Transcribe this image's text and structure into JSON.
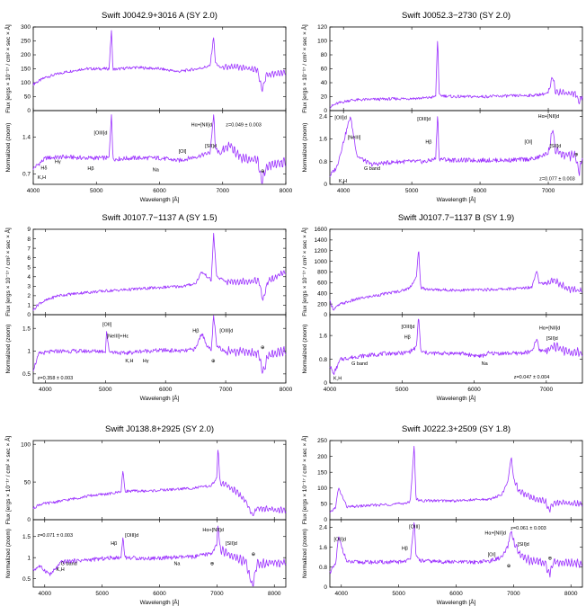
{
  "figure": {
    "xlabel": "Wavelength [Å]",
    "ylabel_flux": "Flux [ergs × 10⁻¹⁷ / cm² × sec × Å]",
    "ylabel_norm": "Normalized (zoom)",
    "line_color": "#9b30ff"
  },
  "chart_data": [
    {
      "type": "line",
      "title": "Swift J0042.9+3016 A (SY 2.0)",
      "xlim": [
        4000,
        8000
      ],
      "xticks": [
        4000,
        5000,
        6000,
        7000,
        8000
      ],
      "flux": {
        "ylim": [
          0,
          300
        ],
        "yticks": [
          0,
          50,
          100,
          150,
          200,
          250,
          300
        ],
        "x": [
          4000,
          4200,
          4500,
          4800,
          5000,
          5200,
          5240,
          5260,
          5300,
          5600,
          6000,
          6300,
          6600,
          6800,
          6860,
          6880,
          6950,
          7300,
          7550,
          7620,
          7700,
          8000
        ],
        "y": [
          95,
          120,
          138,
          150,
          150,
          150,
          295,
          150,
          148,
          155,
          150,
          140,
          150,
          160,
          270,
          175,
          155,
          155,
          145,
          75,
          130,
          135
        ]
      },
      "norm": {
        "ylim": [
          0.5,
          1.9
        ],
        "yticks": [
          0.7,
          1.4
        ],
        "x": [
          4000,
          4200,
          4500,
          4800,
          5000,
          5200,
          5240,
          5260,
          5300,
          5600,
          6000,
          6300,
          6600,
          6800,
          6860,
          6880,
          6950,
          7100,
          7300,
          7550,
          7620,
          7700,
          8000
        ],
        "y": [
          0.8,
          1.0,
          1.02,
          1.0,
          1.0,
          1.0,
          1.9,
          1.0,
          0.98,
          1.0,
          1.0,
          0.95,
          1.03,
          1.1,
          1.85,
          1.2,
          1.08,
          1.25,
          1.0,
          0.95,
          0.55,
          0.85,
          0.92
        ]
      },
      "annotations": [
        {
          "text": "K,H",
          "x": 4070,
          "y": 0.6
        },
        {
          "text": "Hδ",
          "x": 4120,
          "y": 0.78
        },
        {
          "text": "Hγ",
          "x": 4340,
          "y": 0.9
        },
        {
          "text": "Hβ",
          "x": 4860,
          "y": 0.77
        },
        {
          "text": "[OIII]d",
          "x": 4960,
          "y": 1.45
        },
        {
          "text": "Na",
          "x": 5890,
          "y": 0.75
        },
        {
          "text": "[OI]",
          "x": 6300,
          "y": 1.1
        },
        {
          "text": "Hα+[NII]d",
          "x": 6500,
          "y": 1.6
        },
        {
          "text": "[SII]d",
          "x": 6720,
          "y": 1.2
        },
        {
          "text": "z=0.049 ± 0.003",
          "x": 7050,
          "y": 1.6
        },
        {
          "text": "⊕",
          "x": 7600,
          "y": 0.72
        }
      ]
    },
    {
      "type": "line",
      "title": "Swift J0052.3−2730 (SY 2.0)",
      "xlim": [
        3800,
        7500
      ],
      "xticks": [
        4000,
        5000,
        6000,
        7000
      ],
      "flux": {
        "ylim": [
          0,
          120
        ],
        "yticks": [
          0,
          20,
          40,
          60,
          80,
          100,
          120
        ],
        "x": [
          3800,
          3900,
          4100,
          4400,
          4800,
          5200,
          5350,
          5380,
          5400,
          5600,
          6000,
          6400,
          6800,
          7000,
          7070,
          7100,
          7200,
          7400,
          7450,
          7500
        ],
        "y": [
          5,
          10,
          15,
          16,
          17,
          18,
          20,
          110,
          22,
          20,
          20,
          21,
          22,
          25,
          50,
          28,
          26,
          24,
          12,
          22
        ]
      },
      "norm": {
        "ylim": [
          0,
          2.6
        ],
        "yticks": [
          0,
          0.8,
          1.6,
          2.4
        ],
        "x": [
          3800,
          3900,
          4100,
          4200,
          4400,
          4800,
          5200,
          5350,
          5380,
          5400,
          5600,
          6000,
          6400,
          6800,
          7000,
          7070,
          7100,
          7200,
          7400,
          7450,
          7500
        ],
        "y": [
          0.3,
          0.6,
          2.4,
          1.0,
          0.7,
          0.8,
          0.8,
          0.9,
          2.6,
          0.9,
          0.85,
          0.85,
          0.85,
          0.9,
          1.1,
          2.0,
          1.2,
          1.05,
          1.0,
          0.4,
          0.95
        ]
      },
      "annotations": [
        {
          "text": "[OII]d",
          "x": 3870,
          "y": 2.3
        },
        {
          "text": "[NeIII]",
          "x": 4060,
          "y": 1.6
        },
        {
          "text": "K,H",
          "x": 3930,
          "y": 0.05
        },
        {
          "text": "G band",
          "x": 4300,
          "y": 0.5
        },
        {
          "text": "Hβ",
          "x": 5200,
          "y": 1.45
        },
        {
          "text": "[OIII]d",
          "x": 5080,
          "y": 2.25
        },
        {
          "text": "[OI]",
          "x": 6650,
          "y": 1.45
        },
        {
          "text": "Hα+[NII]d",
          "x": 6850,
          "y": 2.35
        },
        {
          "text": "[SII]d",
          "x": 7020,
          "y": 1.3
        },
        {
          "text": "z=0.077 ± 0.003",
          "x": 6870,
          "y": 0.15
        },
        {
          "text": "⊕",
          "x": 7380,
          "y": 1.0
        }
      ]
    },
    {
      "type": "line",
      "title": "Swift J0107.7−1137 A (SY 1.5)",
      "xlim": [
        3800,
        8000
      ],
      "xticks": [
        4000,
        5000,
        6000,
        7000,
        8000
      ],
      "flux": {
        "ylim": [
          0,
          9
        ],
        "yticks": [
          0,
          1,
          2,
          3,
          4,
          5,
          6,
          7,
          8,
          9
        ],
        "x": [
          3800,
          3900,
          4200,
          4600,
          5000,
          5500,
          6000,
          6300,
          6500,
          6600,
          6700,
          6760,
          6800,
          6850,
          7000,
          7300,
          7550,
          7620,
          7700,
          8000
        ],
        "y": [
          0.5,
          1.2,
          2.0,
          2.3,
          2.5,
          2.7,
          2.9,
          3.0,
          3.3,
          4.5,
          4.0,
          3.6,
          8.5,
          4.0,
          3.5,
          3.5,
          3.6,
          1.5,
          3.5,
          4.5
        ]
      },
      "norm": {
        "ylim": [
          0.3,
          1.8
        ],
        "yticks": [
          0.5,
          1,
          1.5
        ],
        "x": [
          3800,
          3900,
          4200,
          4600,
          5000,
          5020,
          5060,
          5300,
          5600,
          6000,
          6300,
          6500,
          6600,
          6700,
          6760,
          6800,
          6850,
          7000,
          7300,
          7550,
          7620,
          7700,
          8000
        ],
        "y": [
          0.6,
          0.95,
          1.0,
          1.0,
          1.0,
          1.45,
          1.0,
          0.95,
          1.0,
          1.02,
          1.0,
          1.05,
          1.4,
          1.1,
          1.0,
          1.8,
          1.1,
          1.0,
          1.0,
          0.95,
          0.5,
          0.9,
          1.0
        ]
      },
      "annotations": [
        {
          "text": "[OII]",
          "x": 4950,
          "y": 1.55
        },
        {
          "text": "[NeIII]+Hε",
          "x": 5020,
          "y": 1.3
        },
        {
          "text": "K,H",
          "x": 5330,
          "y": 0.75
        },
        {
          "text": "Hγ",
          "x": 5620,
          "y": 0.75
        },
        {
          "text": "Hβ",
          "x": 6450,
          "y": 1.42
        },
        {
          "text": "[OIII]d",
          "x": 6900,
          "y": 1.42
        },
        {
          "text": "⊕",
          "x": 6760,
          "y": 0.75
        },
        {
          "text": "⊕",
          "x": 7580,
          "y": 1.05
        },
        {
          "text": "z=0.358 ± 0.003",
          "x": 3870,
          "y": 0.38
        }
      ]
    },
    {
      "type": "line",
      "title": "Swift J0107.7−1137 B (SY 1.9)",
      "xlim": [
        4000,
        7500
      ],
      "xticks": [
        4000,
        5000,
        6000,
        7000
      ],
      "flux": {
        "ylim": [
          0,
          1600
        ],
        "yticks": [
          0,
          200,
          400,
          600,
          800,
          1000,
          1200,
          1400,
          1600
        ],
        "x": [
          4000,
          4050,
          4150,
          4400,
          4800,
          5000,
          5100,
          5200,
          5230,
          5260,
          5400,
          5800,
          6200,
          6600,
          6800,
          6870,
          6900,
          7000,
          7100,
          7300,
          7500
        ],
        "y": [
          250,
          100,
          200,
          300,
          400,
          450,
          500,
          700,
          1250,
          500,
          470,
          460,
          470,
          490,
          520,
          850,
          600,
          580,
          650,
          480,
          440
        ]
      },
      "norm": {
        "ylim": [
          0,
          2.3
        ],
        "yticks": [
          0,
          0.8,
          1.6
        ],
        "x": [
          4000,
          4050,
          4150,
          4400,
          4800,
          5000,
          5100,
          5200,
          5230,
          5260,
          5400,
          5800,
          6100,
          6200,
          6600,
          6800,
          6870,
          6900,
          7000,
          7100,
          7300,
          7500
        ],
        "y": [
          0.6,
          0.3,
          0.8,
          0.9,
          1.0,
          1.0,
          1.05,
          1.2,
          2.3,
          1.05,
          1.0,
          1.0,
          0.9,
          1.0,
          1.0,
          1.05,
          1.5,
          1.1,
          1.1,
          1.25,
          1.05,
          1.0
        ]
      },
      "annotations": [
        {
          "text": "K,H",
          "x": 4020,
          "y": 0.1
        },
        {
          "text": "G band",
          "x": 4300,
          "y": 0.6
        },
        {
          "text": "Hβ",
          "x": 5030,
          "y": 1.5
        },
        {
          "text": "[OIII]d",
          "x": 4990,
          "y": 1.85
        },
        {
          "text": "Na",
          "x": 6100,
          "y": 0.6
        },
        {
          "text": "Hα+[NII]d",
          "x": 6900,
          "y": 1.8
        },
        {
          "text": "[SII]d",
          "x": 7000,
          "y": 1.45
        },
        {
          "text": "z=0.047 ± 0.004",
          "x": 6550,
          "y": 0.15
        }
      ]
    },
    {
      "type": "line",
      "title": "Swift J0138.8+2925 (SY 2.0)",
      "xlim": [
        3800,
        8200
      ],
      "xticks": [
        4000,
        5000,
        6000,
        7000,
        8000
      ],
      "flux": {
        "ylim": [
          0,
          105
        ],
        "yticks": [
          0,
          50,
          100
        ],
        "x": [
          3800,
          3900,
          4300,
          4800,
          5200,
          5330,
          5360,
          5400,
          5800,
          6200,
          6600,
          6900,
          7000,
          7020,
          7050,
          7300,
          7500,
          7620,
          7700,
          8200
        ],
        "y": [
          15,
          20,
          25,
          32,
          35,
          38,
          65,
          38,
          38,
          40,
          42,
          45,
          55,
          100,
          50,
          40,
          25,
          5,
          15,
          12
        ]
      },
      "norm": {
        "ylim": [
          0.3,
          1.9
        ],
        "yticks": [
          0.5,
          1,
          1.5
        ],
        "x": [
          3800,
          3900,
          4100,
          4300,
          4800,
          5200,
          5330,
          5360,
          5400,
          5800,
          6200,
          6600,
          6900,
          7000,
          7020,
          7050,
          7300,
          7500,
          7620,
          7700,
          8200
        ],
        "y": [
          0.7,
          0.8,
          0.6,
          0.9,
          0.95,
          1.0,
          1.0,
          1.5,
          1.0,
          0.98,
          1.0,
          1.02,
          1.1,
          1.3,
          1.85,
          1.2,
          1.0,
          0.9,
          0.3,
          0.85,
          0.9
        ]
      },
      "annotations": [
        {
          "text": "z=0.071 ± 0.003",
          "x": 3870,
          "y": 1.5
        },
        {
          "text": "G band",
          "x": 4280,
          "y": 0.82
        },
        {
          "text": "K,H",
          "x": 4200,
          "y": 0.68
        },
        {
          "text": "Hβ",
          "x": 5150,
          "y": 1.3
        },
        {
          "text": "[OIII]d",
          "x": 5400,
          "y": 1.5
        },
        {
          "text": "Na",
          "x": 6250,
          "y": 0.82
        },
        {
          "text": "⊕",
          "x": 6880,
          "y": 0.82
        },
        {
          "text": "Hα+[NII]d",
          "x": 6750,
          "y": 1.62
        },
        {
          "text": "[SII]d",
          "x": 7150,
          "y": 1.3
        },
        {
          "text": "⊕",
          "x": 7600,
          "y": 1.05
        }
      ]
    },
    {
      "type": "line",
      "title": "Swift J0222.3+2509 (SY 1.8)",
      "xlim": [
        3800,
        8200
      ],
      "xticks": [
        4000,
        5000,
        6000,
        7000,
        8000
      ],
      "flux": {
        "ylim": [
          0,
          250
        ],
        "yticks": [
          0,
          50,
          100,
          150,
          200,
          250
        ],
        "x": [
          3800,
          3900,
          3950,
          4100,
          4500,
          5000,
          5200,
          5270,
          5300,
          5400,
          6000,
          6600,
          6800,
          6900,
          6960,
          7000,
          7100,
          7300,
          7550,
          7620,
          7700,
          8200
        ],
        "y": [
          20,
          40,
          100,
          40,
          45,
          50,
          55,
          240,
          65,
          60,
          60,
          65,
          80,
          120,
          200,
          130,
          90,
          70,
          60,
          30,
          55,
          50
        ]
      },
      "norm": {
        "ylim": [
          0,
          2.7
        ],
        "yticks": [
          0,
          0.8,
          1.6,
          2.4
        ],
        "x": [
          3800,
          3900,
          3950,
          4100,
          4500,
          5000,
          5200,
          5270,
          5300,
          5400,
          6000,
          6300,
          6600,
          6800,
          6900,
          6960,
          7000,
          7100,
          7300,
          7550,
          7620,
          7700,
          8200
        ],
        "y": [
          0.6,
          0.9,
          2.0,
          1.0,
          1.0,
          1.0,
          1.1,
          2.7,
          1.2,
          1.05,
          1.0,
          1.0,
          1.05,
          1.2,
          1.6,
          2.3,
          1.8,
          1.3,
          1.05,
          1.0,
          0.5,
          1.0,
          0.95
        ]
      },
      "annotations": [
        {
          "text": "[OII]d",
          "x": 3870,
          "y": 1.85
        },
        {
          "text": "Hβ",
          "x": 5050,
          "y": 1.5
        },
        {
          "text": "[OIII]",
          "x": 5180,
          "y": 2.35
        },
        {
          "text": "Hα+[NII]d",
          "x": 6500,
          "y": 2.1
        },
        {
          "text": "z=0.061 ± 0.003",
          "x": 6950,
          "y": 2.3
        },
        {
          "text": "[OI]",
          "x": 6550,
          "y": 1.25
        },
        {
          "text": "⊕",
          "x": 6880,
          "y": 0.8
        },
        {
          "text": "[SII]d",
          "x": 7070,
          "y": 1.65
        },
        {
          "text": "⊕",
          "x": 7600,
          "y": 1.1
        }
      ]
    }
  ]
}
